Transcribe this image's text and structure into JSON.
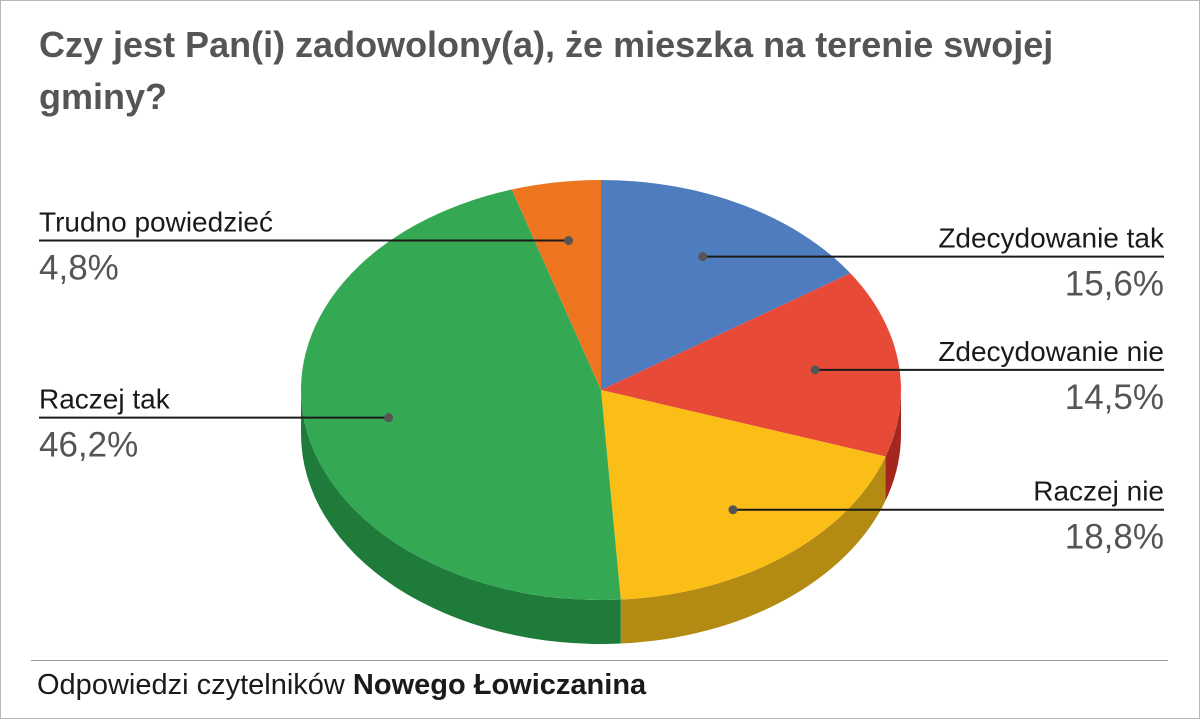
{
  "title": "Czy jest Pan(i) zadowolony(a), że mieszka na terenie swojej gminy?",
  "source": {
    "prefix": "Odpowiedzi czytelników ",
    "publication": "Nowego Łowiczanina"
  },
  "chart_data": {
    "type": "pie",
    "style": "3d",
    "title": "Czy jest Pan(i) zadowolony(a), że mieszka na terenie swojej gminy?",
    "slices": [
      {
        "label": "Zdecydowanie tak",
        "value": 15.6,
        "display": "15,6%",
        "color": "#4f7cbe",
        "side_color": "#3d62a0"
      },
      {
        "label": "Zdecydowanie nie",
        "value": 14.5,
        "display": "14,5%",
        "color": "#e84a38",
        "side_color": "#a3271f"
      },
      {
        "label": "Raczej nie",
        "value": 18.8,
        "display": "18,8%",
        "color": "#fabe16",
        "side_color": "#b38a12"
      },
      {
        "label": "Raczej tak",
        "value": 46.2,
        "display": "46,2%",
        "color": "#35a853",
        "side_color": "#1e7b3a"
      },
      {
        "label": "Trudno powiedzieć",
        "value": 4.8,
        "display": "4,8%",
        "color": "#ee7520",
        "side_color": "#b2561a"
      }
    ],
    "start_angle_deg": 0,
    "direction": "clockwise",
    "label_placement": "outside with leader lines"
  }
}
